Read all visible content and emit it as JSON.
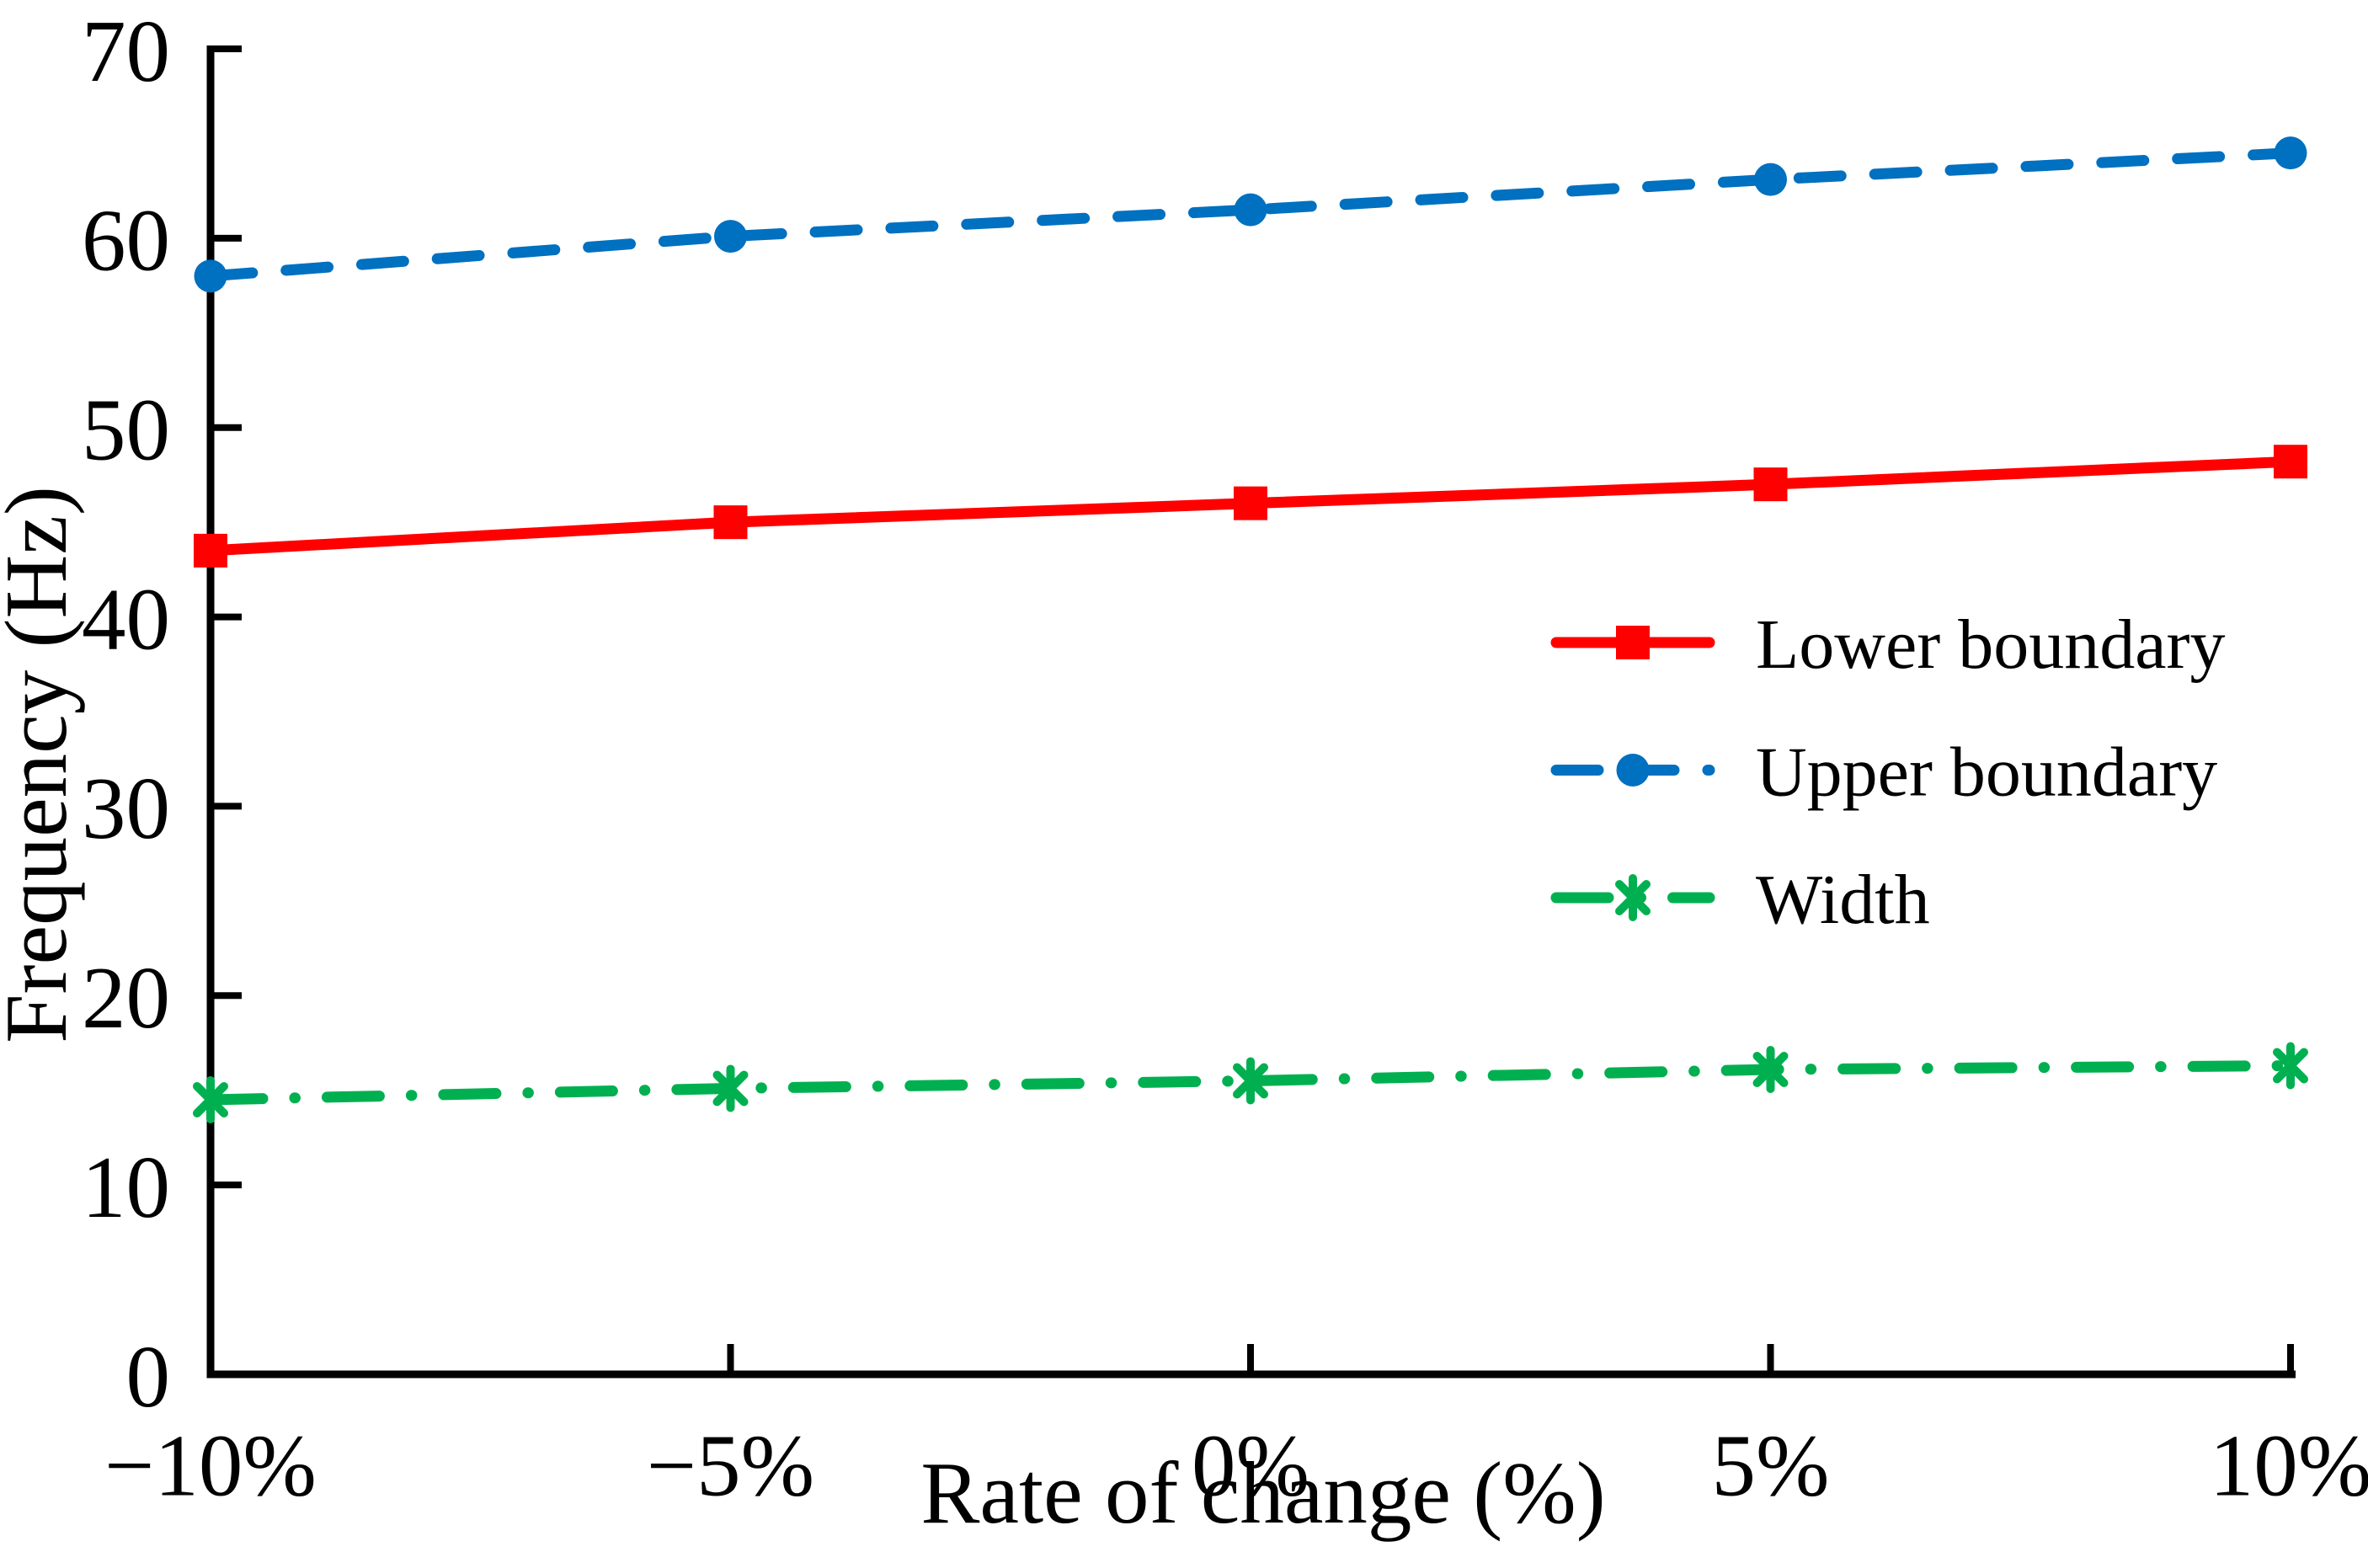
{
  "figure": {
    "background": "#FFFFFF",
    "axis_color": "#000000"
  },
  "chart_data": {
    "type": "line",
    "title": "",
    "xlabel": "Rate of change (%)",
    "ylabel": "Frequency (Hz)",
    "x_tick_labels": [
      "−10%",
      "−5%",
      "0%",
      "5%",
      "10%"
    ],
    "x_values": [
      -10,
      -5,
      0,
      5,
      10
    ],
    "y_ticks": [
      0,
      10,
      20,
      30,
      40,
      50,
      60,
      70
    ],
    "ylim": [
      0,
      70
    ],
    "grid": false,
    "legend_position": "inside-right",
    "series": [
      {
        "name": "Lower boundary",
        "values": [
          43.5,
          45.0,
          46.0,
          47.0,
          48.2
        ],
        "color": "#FF0000",
        "line_style": "solid",
        "marker": "square"
      },
      {
        "name": "Upper boundary",
        "values": [
          58.0,
          60.1,
          61.5,
          63.1,
          64.5
        ],
        "color": "#0070C0",
        "line_style": "dashed",
        "marker": "circle"
      },
      {
        "name": "Width",
        "values": [
          14.5,
          15.1,
          15.5,
          16.1,
          16.3
        ],
        "color": "#00B050",
        "line_style": "dash-dot",
        "marker": "asterisk"
      }
    ]
  }
}
